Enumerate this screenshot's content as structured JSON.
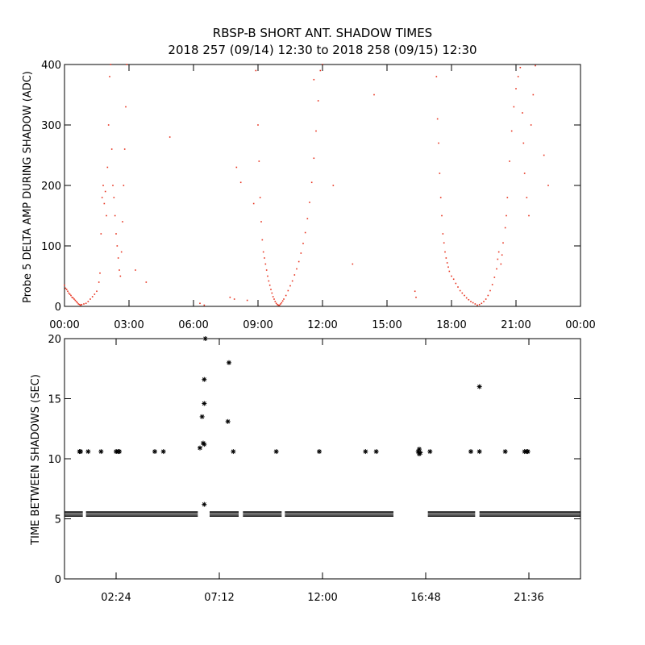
{
  "header": {
    "title": "RBSP-B SHORT ANT. SHADOW TIMES",
    "subtitle": "2018 257 (09/14) 12:30 to 2018 258 (09/15) 12:30"
  },
  "chart_data": [
    {
      "type": "scatter",
      "ylabel": "Probe 5 DELTA AMP DURING SHADOW (ADC)",
      "xlim": [
        0,
        24
      ],
      "ylim": [
        0,
        400
      ],
      "x_ticks": [
        0,
        3,
        6,
        9,
        12,
        15,
        18,
        21,
        24
      ],
      "x_tick_labels": [
        "00:00",
        "03:00",
        "06:00",
        "09:00",
        "12:00",
        "15:00",
        "18:00",
        "21:00",
        "00:00"
      ],
      "y_ticks": [
        0,
        100,
        200,
        300,
        400
      ],
      "y_tick_labels": [
        "0",
        "100",
        "200",
        "300",
        "400"
      ],
      "marker": "dot",
      "color": "#e8321e",
      "series": [
        {
          "points": [
            [
              0.0,
              35
            ],
            [
              0.05,
              30
            ],
            [
              0.1,
              28
            ],
            [
              0.15,
              25
            ],
            [
              0.2,
              22
            ],
            [
              0.25,
              20
            ],
            [
              0.3,
              18
            ],
            [
              0.35,
              15
            ],
            [
              0.4,
              14
            ],
            [
              0.45,
              12
            ],
            [
              0.5,
              10
            ],
            [
              0.55,
              8
            ],
            [
              0.6,
              6
            ],
            [
              0.65,
              4
            ],
            [
              0.7,
              3
            ],
            [
              0.75,
              2
            ],
            [
              0.8,
              3
            ],
            [
              0.9,
              4
            ],
            [
              1.0,
              5
            ],
            [
              1.1,
              8
            ],
            [
              1.2,
              12
            ],
            [
              1.3,
              16
            ],
            [
              1.4,
              20
            ],
            [
              1.5,
              25
            ],
            [
              1.6,
              40
            ],
            [
              1.65,
              55
            ],
            [
              1.7,
              120
            ],
            [
              1.75,
              180
            ],
            [
              1.8,
              200
            ],
            [
              1.85,
              170
            ],
            [
              1.9,
              190
            ],
            [
              1.95,
              150
            ],
            [
              2.0,
              230
            ],
            [
              2.05,
              300
            ],
            [
              2.1,
              380
            ],
            [
              2.15,
              400
            ],
            [
              2.2,
              260
            ],
            [
              2.25,
              200
            ],
            [
              2.3,
              180
            ],
            [
              2.35,
              150
            ],
            [
              2.4,
              120
            ],
            [
              2.45,
              100
            ],
            [
              2.5,
              80
            ],
            [
              2.55,
              60
            ],
            [
              2.6,
              50
            ],
            [
              2.65,
              90
            ],
            [
              2.7,
              140
            ],
            [
              2.75,
              200
            ],
            [
              2.8,
              260
            ],
            [
              2.85,
              330
            ],
            [
              2.9,
              400
            ],
            [
              3.3,
              60
            ],
            [
              3.8,
              40
            ],
            [
              4.9,
              280
            ],
            [
              6.3,
              5
            ],
            [
              6.5,
              2
            ],
            [
              7.7,
              15
            ],
            [
              7.9,
              12
            ],
            [
              8.0,
              230
            ],
            [
              8.2,
              205
            ],
            [
              8.5,
              10
            ],
            [
              8.8,
              170
            ],
            [
              8.9,
              390
            ],
            [
              9.0,
              300
            ],
            [
              9.05,
              240
            ],
            [
              9.1,
              180
            ],
            [
              9.15,
              140
            ],
            [
              9.2,
              110
            ],
            [
              9.25,
              90
            ],
            [
              9.3,
              80
            ],
            [
              9.35,
              70
            ],
            [
              9.4,
              60
            ],
            [
              9.45,
              50
            ],
            [
              9.5,
              42
            ],
            [
              9.55,
              35
            ],
            [
              9.6,
              28
            ],
            [
              9.65,
              22
            ],
            [
              9.7,
              16
            ],
            [
              9.75,
              12
            ],
            [
              9.8,
              8
            ],
            [
              9.85,
              5
            ],
            [
              9.9,
              3
            ],
            [
              9.95,
              2
            ],
            [
              10.0,
              2
            ],
            [
              10.05,
              4
            ],
            [
              10.1,
              6
            ],
            [
              10.15,
              9
            ],
            [
              10.2,
              12
            ],
            [
              10.3,
              18
            ],
            [
              10.4,
              26
            ],
            [
              10.5,
              34
            ],
            [
              10.6,
              42
            ],
            [
              10.7,
              52
            ],
            [
              10.8,
              62
            ],
            [
              10.9,
              74
            ],
            [
              11.0,
              88
            ],
            [
              11.1,
              104
            ],
            [
              11.2,
              122
            ],
            [
              11.3,
              145
            ],
            [
              11.4,
              172
            ],
            [
              11.5,
              205
            ],
            [
              11.6,
              245
            ],
            [
              11.7,
              290
            ],
            [
              11.8,
              340
            ],
            [
              11.9,
              390
            ],
            [
              12.0,
              400
            ],
            [
              11.6,
              375
            ],
            [
              12.5,
              200
            ],
            [
              13.4,
              70
            ],
            [
              14.4,
              350
            ],
            [
              16.3,
              25
            ],
            [
              16.35,
              15
            ],
            [
              17.3,
              380
            ],
            [
              17.35,
              310
            ],
            [
              17.4,
              270
            ],
            [
              17.45,
              220
            ],
            [
              17.5,
              180
            ],
            [
              17.55,
              150
            ],
            [
              17.6,
              120
            ],
            [
              17.65,
              105
            ],
            [
              17.7,
              90
            ],
            [
              17.75,
              80
            ],
            [
              17.8,
              72
            ],
            [
              17.85,
              65
            ],
            [
              17.9,
              58
            ],
            [
              18.0,
              50
            ],
            [
              18.1,
              45
            ],
            [
              18.2,
              38
            ],
            [
              18.3,
              32
            ],
            [
              18.4,
              26
            ],
            [
              18.5,
              22
            ],
            [
              18.6,
              18
            ],
            [
              18.7,
              14
            ],
            [
              18.8,
              11
            ],
            [
              18.9,
              8
            ],
            [
              19.0,
              6
            ],
            [
              19.1,
              4
            ],
            [
              19.2,
              2
            ],
            [
              19.3,
              3
            ],
            [
              19.4,
              5
            ],
            [
              19.5,
              8
            ],
            [
              19.6,
              12
            ],
            [
              19.7,
              18
            ],
            [
              19.8,
              26
            ],
            [
              19.9,
              36
            ],
            [
              20.0,
              48
            ],
            [
              20.1,
              62
            ],
            [
              20.15,
              78
            ],
            [
              20.2,
              90
            ],
            [
              20.3,
              70
            ],
            [
              20.35,
              85
            ],
            [
              20.4,
              105
            ],
            [
              20.5,
              130
            ],
            [
              20.55,
              150
            ],
            [
              20.6,
              180
            ],
            [
              20.7,
              240
            ],
            [
              20.8,
              290
            ],
            [
              20.9,
              330
            ],
            [
              21.0,
              360
            ],
            [
              21.1,
              380
            ],
            [
              21.2,
              395
            ],
            [
              21.3,
              320
            ],
            [
              21.35,
              270
            ],
            [
              21.4,
              220
            ],
            [
              21.5,
              180
            ],
            [
              21.6,
              150
            ],
            [
              21.7,
              300
            ],
            [
              21.8,
              350
            ],
            [
              21.9,
              398
            ],
            [
              22.3,
              250
            ],
            [
              22.5,
              200
            ]
          ]
        }
      ]
    },
    {
      "type": "scatter",
      "ylabel": "TIME BETWEEN SHADOWS (SEC)",
      "xlim": [
        0,
        24
      ],
      "ylim": [
        0,
        20
      ],
      "x_ticks": [
        2.4,
        7.2,
        12.0,
        16.8,
        21.6
      ],
      "x_tick_labels": [
        "02:24",
        "07:12",
        "12:00",
        "16:48",
        "21:36"
      ],
      "y_ticks": [
        0,
        5,
        10,
        15,
        20
      ],
      "y_tick_labels": [
        "0",
        "5",
        "10",
        "15",
        "20"
      ],
      "marker": "asterisk",
      "color": "#000000",
      "series": [
        {
          "baseline_runs": [
            [
              0.0,
              0.85,
              5.4
            ],
            [
              1.0,
              6.2,
              5.4
            ],
            [
              6.75,
              8.1,
              5.4
            ],
            [
              8.3,
              10.1,
              5.4
            ],
            [
              10.25,
              15.3,
              5.4
            ],
            [
              16.9,
              19.1,
              5.4
            ],
            [
              19.3,
              24.0,
              5.4
            ]
          ],
          "points": [
            [
              0.7,
              10.6
            ],
            [
              0.75,
              10.6
            ],
            [
              1.1,
              10.6
            ],
            [
              1.7,
              10.6
            ],
            [
              2.4,
              10.6
            ],
            [
              2.5,
              10.6
            ],
            [
              2.55,
              10.6
            ],
            [
              4.2,
              10.6
            ],
            [
              4.6,
              10.6
            ],
            [
              6.3,
              10.9
            ],
            [
              6.4,
              13.5
            ],
            [
              6.45,
              11.3
            ],
            [
              6.5,
              11.2
            ],
            [
              6.5,
              14.6
            ],
            [
              6.5,
              16.6
            ],
            [
              6.55,
              20.0
            ],
            [
              6.5,
              6.2
            ],
            [
              7.6,
              13.1
            ],
            [
              7.65,
              18.0
            ],
            [
              7.85,
              10.6
            ],
            [
              9.85,
              10.6
            ],
            [
              11.85,
              10.6
            ],
            [
              14.0,
              10.6
            ],
            [
              14.5,
              10.6
            ],
            [
              16.45,
              10.6
            ],
            [
              16.5,
              10.8
            ],
            [
              16.55,
              10.5
            ],
            [
              16.5,
              10.4
            ],
            [
              17.0,
              10.6
            ],
            [
              18.9,
              10.6
            ],
            [
              19.3,
              10.6
            ],
            [
              19.3,
              16.0
            ],
            [
              20.5,
              10.6
            ],
            [
              21.4,
              10.6
            ],
            [
              21.5,
              10.6
            ],
            [
              21.55,
              10.6
            ]
          ]
        }
      ]
    }
  ]
}
